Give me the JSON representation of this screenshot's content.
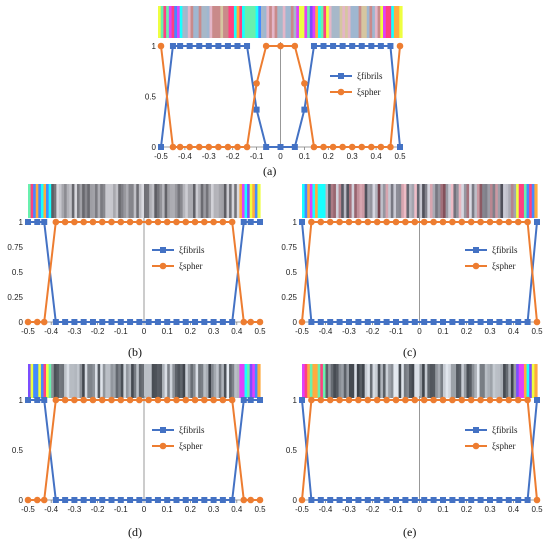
{
  "colors": {
    "fibrils": "#4472C4",
    "spher": "#ED7D31",
    "axis": "#7f7f7f"
  },
  "panel_labels": [
    "(a)",
    "(b)",
    "(c)",
    "(d)",
    "(e)"
  ],
  "chart_data": [
    {
      "type": "line",
      "panel": "a",
      "xlim": [
        -0.5,
        0.5
      ],
      "ylim": [
        0,
        1
      ],
      "x_ticks": [
        "-0.5",
        "-0.4",
        "-0.3",
        "-0.2",
        "-0.1",
        "0",
        "0.1",
        "0.2",
        "0.3",
        "0.4",
        "0.5"
      ],
      "y_ticks": [
        "0",
        "0.5",
        "1"
      ],
      "legend_position": "right",
      "series": [
        {
          "name": "ξfibrils",
          "x": [
            -0.5,
            -0.45,
            -0.42,
            -0.38,
            -0.34,
            -0.3,
            -0.26,
            -0.22,
            -0.18,
            -0.14,
            -0.1,
            -0.06,
            0,
            0.06,
            0.1,
            0.14,
            0.18,
            0.22,
            0.26,
            0.3,
            0.34,
            0.38,
            0.42,
            0.46,
            0.5
          ],
          "y": [
            0,
            1,
            1,
            1,
            1,
            1,
            1,
            1,
            1,
            1,
            0.37,
            0,
            0,
            0,
            0.37,
            1,
            1,
            1,
            1,
            1,
            1,
            1,
            1,
            1,
            0
          ]
        },
        {
          "name": "ξspher",
          "x": [
            -0.5,
            -0.45,
            -0.42,
            -0.38,
            -0.34,
            -0.3,
            -0.26,
            -0.22,
            -0.18,
            -0.14,
            -0.1,
            -0.06,
            0,
            0.06,
            0.1,
            0.14,
            0.18,
            0.22,
            0.26,
            0.3,
            0.34,
            0.38,
            0.42,
            0.46,
            0.5
          ],
          "y": [
            1,
            0,
            0,
            0,
            0,
            0,
            0,
            0,
            0,
            0,
            0.63,
            1,
            1,
            1,
            0.63,
            0,
            0,
            0,
            0,
            0,
            0,
            0,
            0,
            0,
            1
          ]
        }
      ]
    },
    {
      "type": "line",
      "panel": "b",
      "xlim": [
        -0.5,
        0.5
      ],
      "ylim": [
        0,
        1
      ],
      "x_ticks": [
        "-0.5",
        "-0.4",
        "-0.3",
        "-0.2",
        "-0.1",
        "0",
        "0.1",
        "0.2",
        "0.3",
        "0.4",
        "0.5"
      ],
      "y_ticks": [
        "0",
        "0.25",
        "0.5",
        "0.75",
        "1"
      ],
      "legend_position": "right",
      "series": [
        {
          "name": "ξfibrils",
          "x": [
            -0.5,
            -0.46,
            -0.43,
            -0.38,
            -0.34,
            -0.3,
            -0.26,
            -0.22,
            -0.18,
            -0.14,
            -0.1,
            -0.06,
            -0.02,
            0.02,
            0.06,
            0.1,
            0.14,
            0.18,
            0.22,
            0.26,
            0.3,
            0.34,
            0.38,
            0.43,
            0.46,
            0.5
          ],
          "y": [
            1,
            1,
            1,
            0,
            0,
            0,
            0,
            0,
            0,
            0,
            0,
            0,
            0,
            0,
            0,
            0,
            0,
            0,
            0,
            0,
            0,
            0,
            0,
            1,
            1,
            1
          ]
        },
        {
          "name": "ξspher",
          "x": [
            -0.5,
            -0.46,
            -0.43,
            -0.38,
            -0.34,
            -0.3,
            -0.26,
            -0.22,
            -0.18,
            -0.14,
            -0.1,
            -0.06,
            -0.02,
            0.02,
            0.06,
            0.1,
            0.14,
            0.18,
            0.22,
            0.26,
            0.3,
            0.34,
            0.38,
            0.43,
            0.46,
            0.5
          ],
          "y": [
            0,
            0,
            0,
            1,
            1,
            1,
            1,
            1,
            1,
            1,
            1,
            1,
            1,
            1,
            1,
            1,
            1,
            1,
            1,
            1,
            1,
            1,
            1,
            0,
            0,
            0
          ]
        }
      ]
    },
    {
      "type": "line",
      "panel": "c",
      "xlim": [
        -0.5,
        0.5
      ],
      "ylim": [
        0,
        1
      ],
      "x_ticks": [
        "-0.5",
        "-0.4",
        "-0.3",
        "-0.2",
        "-0.1",
        "0",
        "0.1",
        "0.2",
        "0.3",
        "0.4",
        "0.5"
      ],
      "y_ticks": [
        "0",
        "0.25",
        "0.5",
        "0.75",
        "1"
      ],
      "legend_position": "right",
      "series": [
        {
          "name": "ξfibrils",
          "x": [
            -0.5,
            -0.46,
            -0.42,
            -0.38,
            -0.34,
            -0.3,
            -0.26,
            -0.22,
            -0.18,
            -0.14,
            -0.1,
            -0.06,
            -0.02,
            0.02,
            0.06,
            0.1,
            0.14,
            0.18,
            0.22,
            0.26,
            0.3,
            0.34,
            0.38,
            0.42,
            0.46,
            0.5
          ],
          "y": [
            1,
            0,
            0,
            0,
            0,
            0,
            0,
            0,
            0,
            0,
            0,
            0,
            0,
            0,
            0,
            0,
            0,
            0,
            0,
            0,
            0,
            0,
            0,
            0,
            0,
            1
          ]
        },
        {
          "name": "ξspher",
          "x": [
            -0.5,
            -0.46,
            -0.42,
            -0.38,
            -0.34,
            -0.3,
            -0.26,
            -0.22,
            -0.18,
            -0.14,
            -0.1,
            -0.06,
            -0.02,
            0.02,
            0.06,
            0.1,
            0.14,
            0.18,
            0.22,
            0.26,
            0.3,
            0.34,
            0.38,
            0.42,
            0.46,
            0.5
          ],
          "y": [
            0,
            1,
            1,
            1,
            1,
            1,
            1,
            1,
            1,
            1,
            1,
            1,
            1,
            1,
            1,
            1,
            1,
            1,
            1,
            1,
            1,
            1,
            1,
            1,
            1,
            0
          ]
        }
      ]
    },
    {
      "type": "line",
      "panel": "d",
      "xlim": [
        -0.5,
        0.5
      ],
      "ylim": [
        0,
        1
      ],
      "x_ticks": [
        "-0.5",
        "-0.4",
        "-0.3",
        "-0.2",
        "-0.1",
        "0",
        "0.1",
        "0.2",
        "0.3",
        "0.4",
        "0.5"
      ],
      "y_ticks": [
        "0",
        "0.5",
        "1"
      ],
      "legend_position": "right",
      "series": [
        {
          "name": "ξfibrils",
          "x": [
            -0.5,
            -0.46,
            -0.43,
            -0.38,
            -0.34,
            -0.3,
            -0.26,
            -0.22,
            -0.18,
            -0.14,
            -0.1,
            -0.06,
            -0.02,
            0.02,
            0.06,
            0.1,
            0.14,
            0.18,
            0.22,
            0.26,
            0.3,
            0.34,
            0.38,
            0.43,
            0.46,
            0.5
          ],
          "y": [
            1,
            1,
            1,
            0,
            0,
            0,
            0,
            0,
            0,
            0,
            0,
            0,
            0,
            0,
            0,
            0,
            0,
            0,
            0,
            0,
            0,
            0,
            0,
            1,
            1,
            1
          ]
        },
        {
          "name": "ξspher",
          "x": [
            -0.5,
            -0.46,
            -0.43,
            -0.38,
            -0.34,
            -0.3,
            -0.26,
            -0.22,
            -0.18,
            -0.14,
            -0.1,
            -0.06,
            -0.02,
            0.02,
            0.06,
            0.1,
            0.14,
            0.18,
            0.22,
            0.26,
            0.3,
            0.34,
            0.38,
            0.43,
            0.46,
            0.5
          ],
          "y": [
            0,
            0,
            0,
            1,
            1,
            1,
            1,
            1,
            1,
            1,
            1,
            1,
            1,
            1,
            1,
            1,
            1,
            1,
            1,
            1,
            1,
            1,
            1,
            0,
            0,
            0
          ]
        }
      ]
    },
    {
      "type": "line",
      "panel": "e",
      "xlim": [
        -0.5,
        0.5
      ],
      "ylim": [
        0,
        1
      ],
      "x_ticks": [
        "-0.5",
        "-0.4",
        "-0.3",
        "-0.2",
        "-0.1",
        "0",
        "0.1",
        "0.2",
        "0.3",
        "0.4",
        "0.5"
      ],
      "y_ticks": [
        "0",
        "0.5",
        "1"
      ],
      "legend_position": "right",
      "series": [
        {
          "name": "ξfibrils",
          "x": [
            -0.5,
            -0.46,
            -0.42,
            -0.38,
            -0.34,
            -0.3,
            -0.26,
            -0.22,
            -0.18,
            -0.14,
            -0.1,
            -0.06,
            -0.02,
            0.02,
            0.06,
            0.1,
            0.14,
            0.18,
            0.22,
            0.26,
            0.3,
            0.34,
            0.38,
            0.42,
            0.46,
            0.5
          ],
          "y": [
            1,
            0,
            0,
            0,
            0,
            0,
            0,
            0,
            0,
            0,
            0,
            0,
            0,
            0,
            0,
            0,
            0,
            0,
            0,
            0,
            0,
            0,
            0,
            0,
            0,
            1
          ]
        },
        {
          "name": "ξspher",
          "x": [
            -0.5,
            -0.46,
            -0.42,
            -0.38,
            -0.34,
            -0.3,
            -0.26,
            -0.22,
            -0.18,
            -0.14,
            -0.1,
            -0.06,
            -0.02,
            0.02,
            0.06,
            0.1,
            0.14,
            0.18,
            0.22,
            0.26,
            0.3,
            0.34,
            0.38,
            0.42,
            0.46,
            0.5
          ],
          "y": [
            0,
            1,
            1,
            1,
            1,
            1,
            1,
            1,
            1,
            1,
            1,
            1,
            1,
            1,
            1,
            1,
            1,
            1,
            1,
            1,
            1,
            1,
            1,
            1,
            1,
            0
          ]
        }
      ]
    }
  ]
}
